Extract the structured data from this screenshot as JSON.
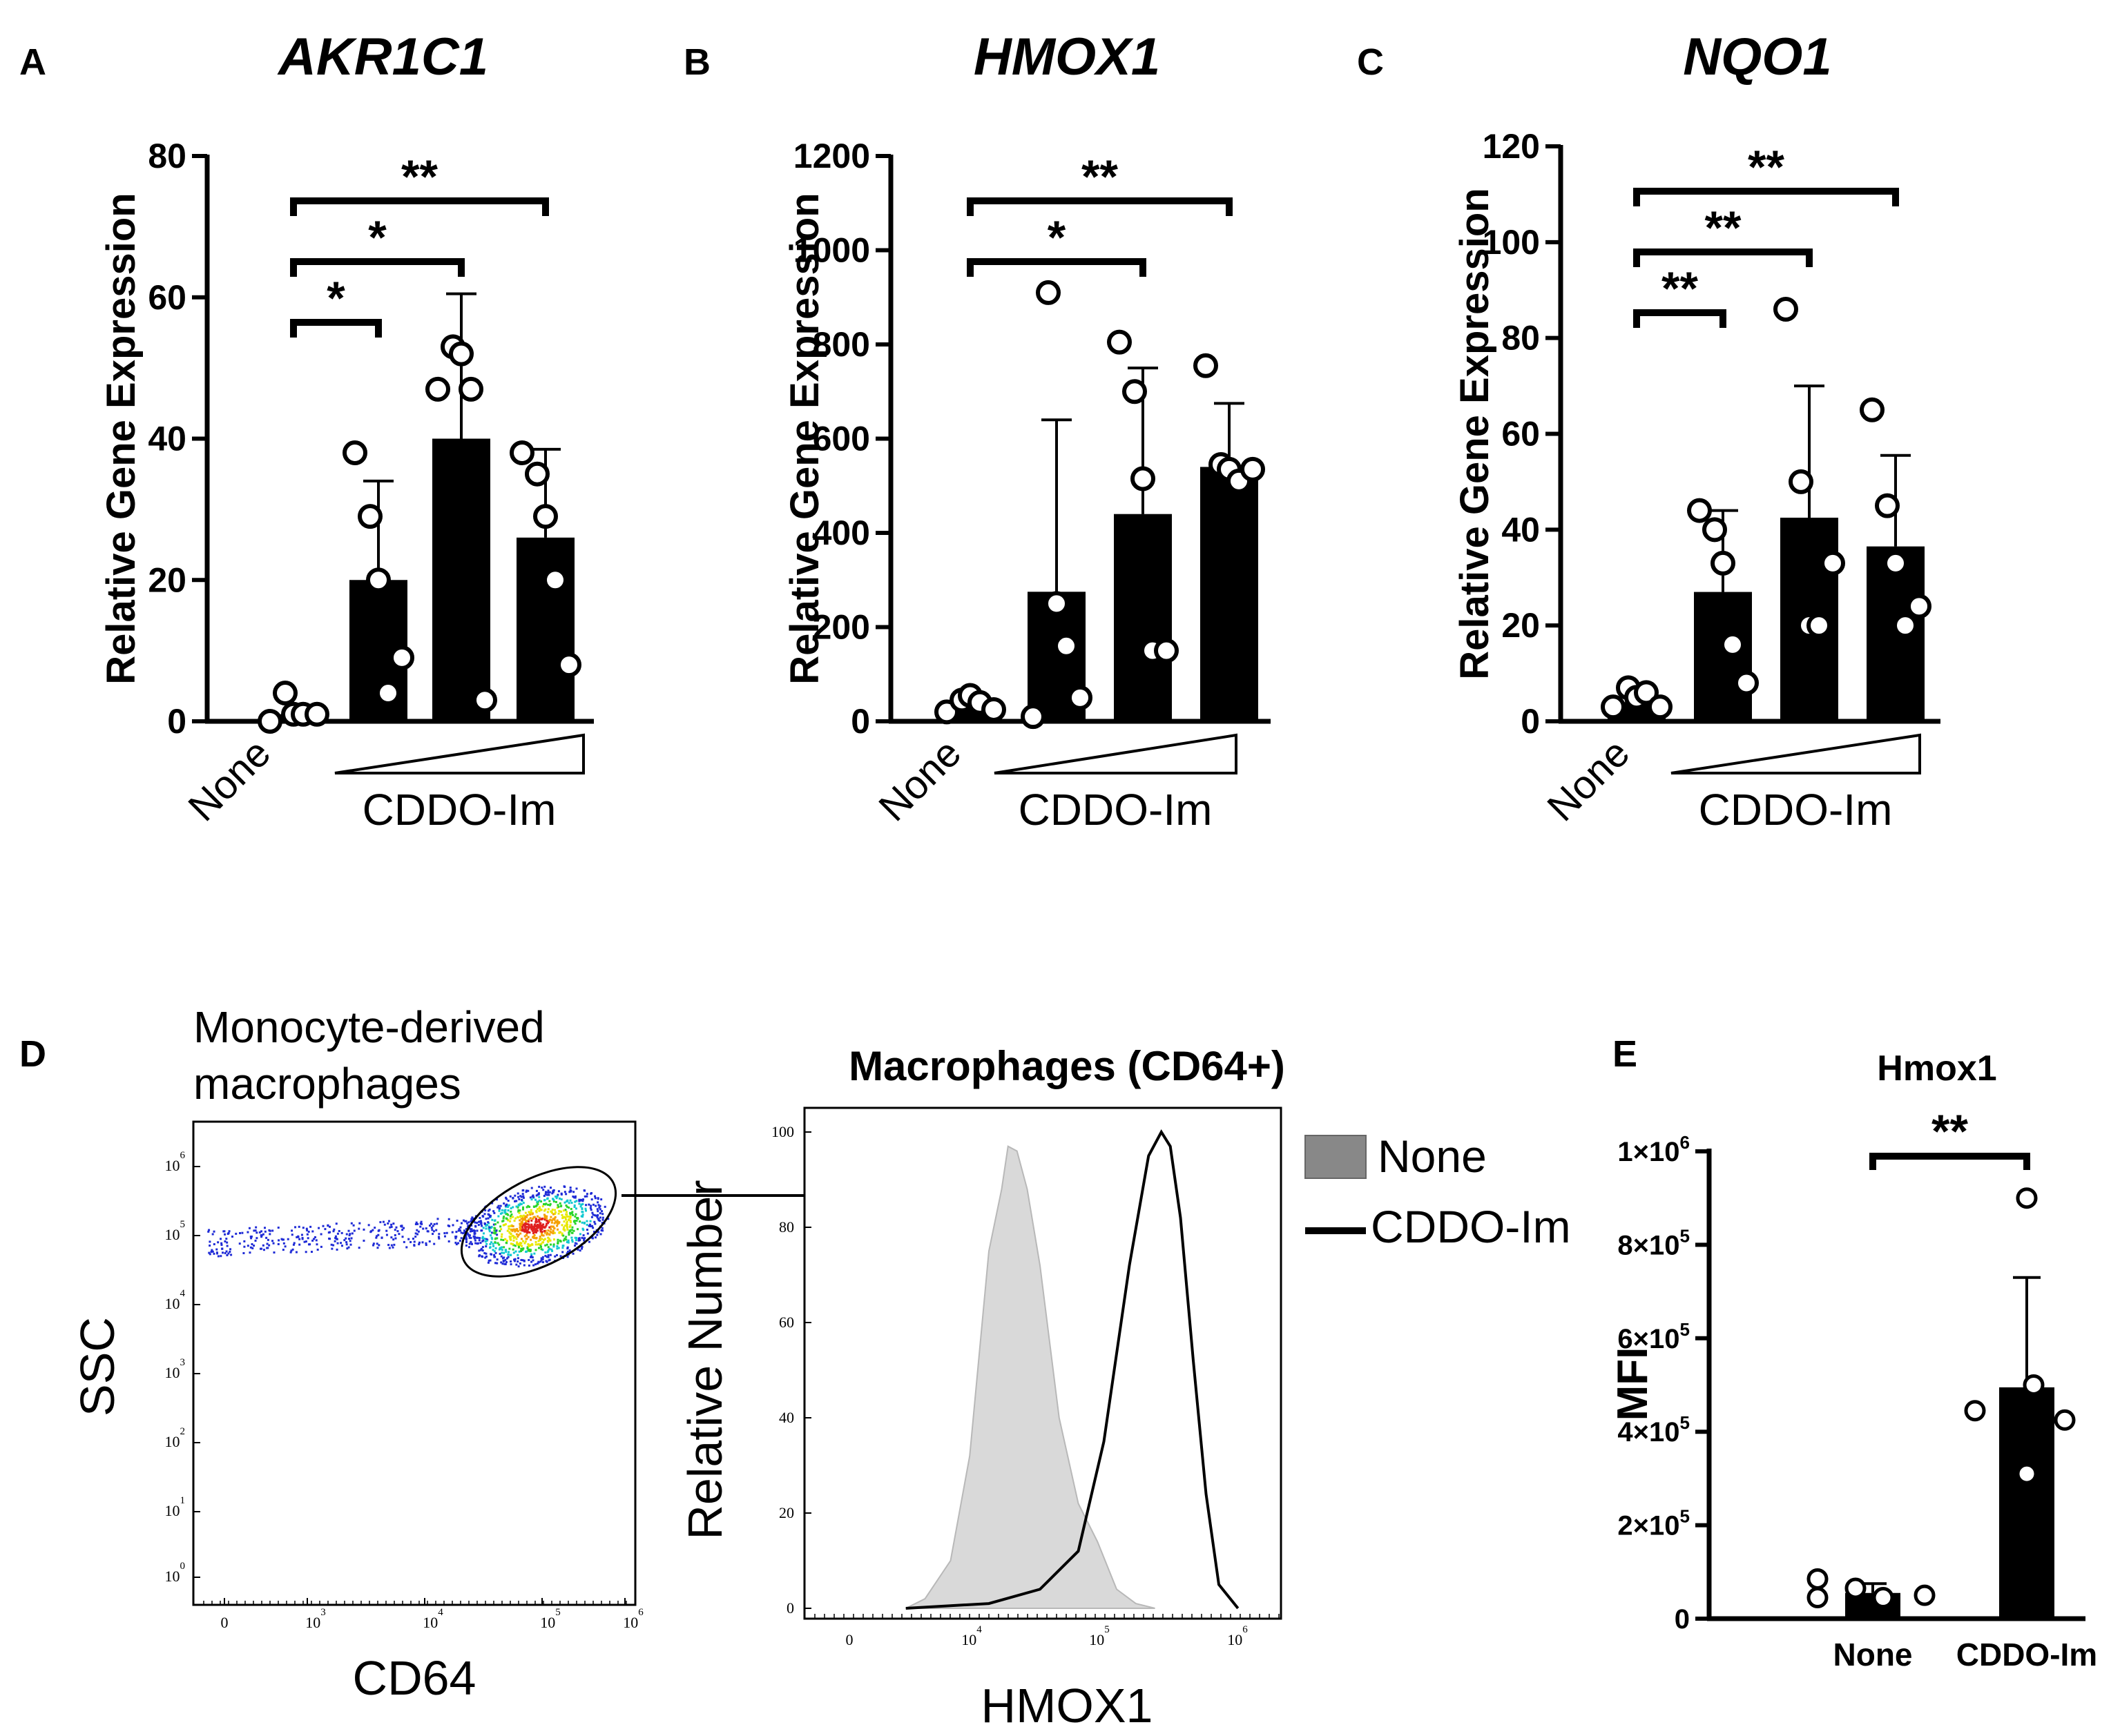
{
  "chart_data": [
    {
      "panel": "A",
      "type": "bar",
      "title": "AKR1C1",
      "ylabel": "Relative Gene Expression",
      "ylim": [
        0,
        80
      ],
      "yticks": [
        "0",
        "20",
        "40",
        "60",
        "80"
      ],
      "categories": [
        "None",
        "",
        "",
        ""
      ],
      "group_label": "CDDO-Im",
      "values": [
        1,
        20,
        40,
        26
      ],
      "errors": [
        0,
        14,
        20.5,
        12.5
      ],
      "points": [
        [
          0,
          4,
          1,
          1,
          1
        ],
        [
          38,
          29,
          20,
          4,
          9
        ],
        [
          47,
          53,
          52,
          47,
          3
        ],
        [
          38,
          35,
          29,
          20,
          8
        ]
      ],
      "significance": [
        {
          "from": 0,
          "to": 1,
          "label": "*"
        },
        {
          "from": 0,
          "to": 2,
          "label": "*"
        },
        {
          "from": 0,
          "to": 3,
          "label": "**"
        }
      ]
    },
    {
      "panel": "B",
      "type": "bar",
      "title": "HMOX1",
      "ylabel": "Relative Gene Expression",
      "ylim": [
        0,
        1200
      ],
      "yticks": [
        "0",
        "200",
        "400",
        "600",
        "800",
        "1000",
        "1200"
      ],
      "categories": [
        "None",
        "",
        "",
        ""
      ],
      "group_label": "CDDO-Im",
      "values": [
        35,
        275,
        440,
        540
      ],
      "errors": [
        0,
        365,
        310,
        135
      ],
      "points": [
        [
          20,
          45,
          55,
          40,
          25
        ],
        [
          10,
          910,
          250,
          160,
          50
        ],
        [
          805,
          700,
          515,
          150,
          150
        ],
        [
          755,
          545,
          535,
          510,
          535
        ]
      ],
      "significance": [
        {
          "from": 0,
          "to": 2,
          "label": "*"
        },
        {
          "from": 0,
          "to": 3,
          "label": "**"
        }
      ]
    },
    {
      "panel": "C",
      "type": "bar",
      "title": "NQO1",
      "ylabel": "Relative Gene Expression",
      "ylim": [
        0,
        120
      ],
      "yticks": [
        "0",
        "20",
        "40",
        "60",
        "80",
        "100",
        "120"
      ],
      "categories": [
        "None",
        "",
        "",
        ""
      ],
      "group_label": "CDDO-Im",
      "values": [
        4,
        27,
        42.5,
        36.5
      ],
      "errors": [
        0,
        17,
        27.5,
        19
      ],
      "points": [
        [
          3,
          7,
          5,
          6,
          3
        ],
        [
          44,
          40,
          33,
          16,
          8
        ],
        [
          86,
          50,
          20,
          20,
          33
        ],
        [
          65,
          45,
          33,
          20,
          24
        ]
      ],
      "significance": [
        {
          "from": 0,
          "to": 1,
          "label": "**"
        },
        {
          "from": 0,
          "to": 2,
          "label": "**"
        },
        {
          "from": 0,
          "to": 3,
          "label": "**"
        }
      ]
    },
    {
      "panel": "D-left",
      "type": "scatter",
      "title": "Monocyte-derived macrophages",
      "xlabel": "CD64",
      "ylabel": "SSC",
      "xticks": [
        "0",
        "10^3",
        "10^4",
        "10^5",
        "10^6"
      ],
      "yticks": [
        "10^0",
        "10^1",
        "10^2",
        "10^3",
        "10^4",
        "10^5",
        "10^6"
      ]
    },
    {
      "panel": "D-right",
      "type": "area",
      "title": "Macrophages (CD64+)",
      "xlabel": "HMOX1",
      "ylabel": "Relative Number",
      "yticks": [
        "0",
        "20",
        "40",
        "60",
        "80",
        "100"
      ],
      "xticks": [
        "0",
        "10^4",
        "10^5",
        "10^6"
      ],
      "ylim": [
        0,
        100
      ],
      "series": [
        {
          "name": "None",
          "x_log": [
            3.55,
            3.7,
            3.9,
            4.05,
            4.2,
            4.3,
            4.35,
            4.42,
            4.5,
            4.6,
            4.75,
            4.9,
            5.05,
            5.2,
            5.35,
            5.5
          ],
          "y": [
            0,
            2,
            10,
            32,
            75,
            88,
            97,
            96,
            88,
            72,
            40,
            22,
            14,
            4,
            1,
            0
          ]
        },
        {
          "name": "CDDO-Im",
          "x_log": [
            3.55,
            4.2,
            4.6,
            4.9,
            5.1,
            5.3,
            5.45,
            5.55,
            5.62,
            5.7,
            5.8,
            5.9,
            6.0,
            6.15
          ],
          "y": [
            0,
            1,
            4,
            12,
            35,
            72,
            95,
            100,
            97,
            82,
            52,
            24,
            5,
            0
          ]
        }
      ],
      "legend": [
        "None",
        "CDDO-Im"
      ]
    },
    {
      "panel": "E",
      "type": "bar",
      "title": "Hmox1",
      "ylabel": "MFI",
      "ylim": [
        0,
        1000000
      ],
      "yticks": [
        {
          "base": "0",
          "exp": ""
        },
        {
          "base": "2×10",
          "exp": "5"
        },
        {
          "base": "4×10",
          "exp": "5"
        },
        {
          "base": "6×10",
          "exp": "5"
        },
        {
          "base": "8×10",
          "exp": "5"
        },
        {
          "base": "1×10",
          "exp": "6"
        }
      ],
      "categories": [
        "None",
        "CDDO-Im"
      ],
      "values": [
        55000,
        495000
      ],
      "errors": [
        20000,
        235000
      ],
      "points": [
        [
          85000,
          45000,
          65000,
          45000,
          50000
        ],
        [
          900000,
          445000,
          500000,
          310000,
          425000
        ]
      ],
      "significance": [
        {
          "from": 0,
          "to": 1,
          "label": "**"
        }
      ]
    }
  ],
  "panel_letters": [
    "A",
    "B",
    "C",
    "D",
    "E"
  ]
}
